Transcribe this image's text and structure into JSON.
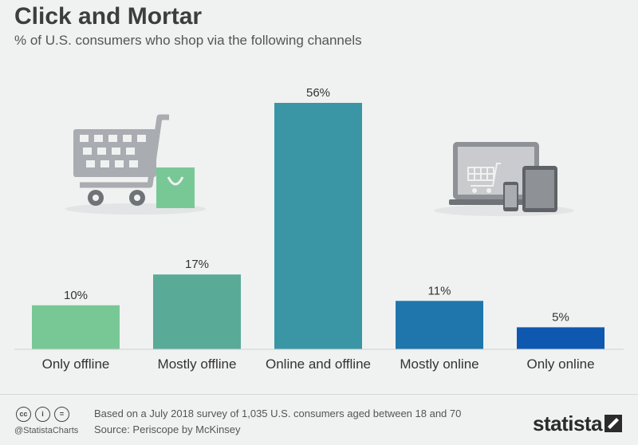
{
  "title": "Click and Mortar",
  "subtitle": "% of U.S. consumers who shop via the following channels",
  "chart_data": {
    "type": "bar",
    "title": "Click and Mortar",
    "subtitle": "% of U.S. consumers who shop via the following channels",
    "categories": [
      "Only offline",
      "Mostly offline",
      "Online and offline",
      "Mostly online",
      "Only online"
    ],
    "values": [
      10,
      17,
      56,
      11,
      5
    ],
    "value_labels": [
      "10%",
      "17%",
      "56%",
      "11%",
      "5%"
    ],
    "colors": [
      "#78c896",
      "#5aaa98",
      "#3a96a4",
      "#1e76ac",
      "#0e58b0"
    ],
    "unit": "%",
    "ylim": [
      0,
      56
    ],
    "grid": false,
    "xlabel": "",
    "ylabel": ""
  },
  "icons": {
    "left": "shopping-cart-with-bag-icon",
    "right": "laptop-phone-tablet-icon",
    "cart_color": "#a9acb0",
    "bag_color": "#78c896",
    "device_color": "#8e9196"
  },
  "footer": {
    "note": "Based on a July 2018 survey of 1,035 U.S. consumers aged between 18 and 70",
    "source": "Source: Periscope by McKinsey",
    "handle": "@StatistaCharts",
    "cc_icons": [
      "cc",
      "i",
      "="
    ],
    "brand": "statista"
  }
}
